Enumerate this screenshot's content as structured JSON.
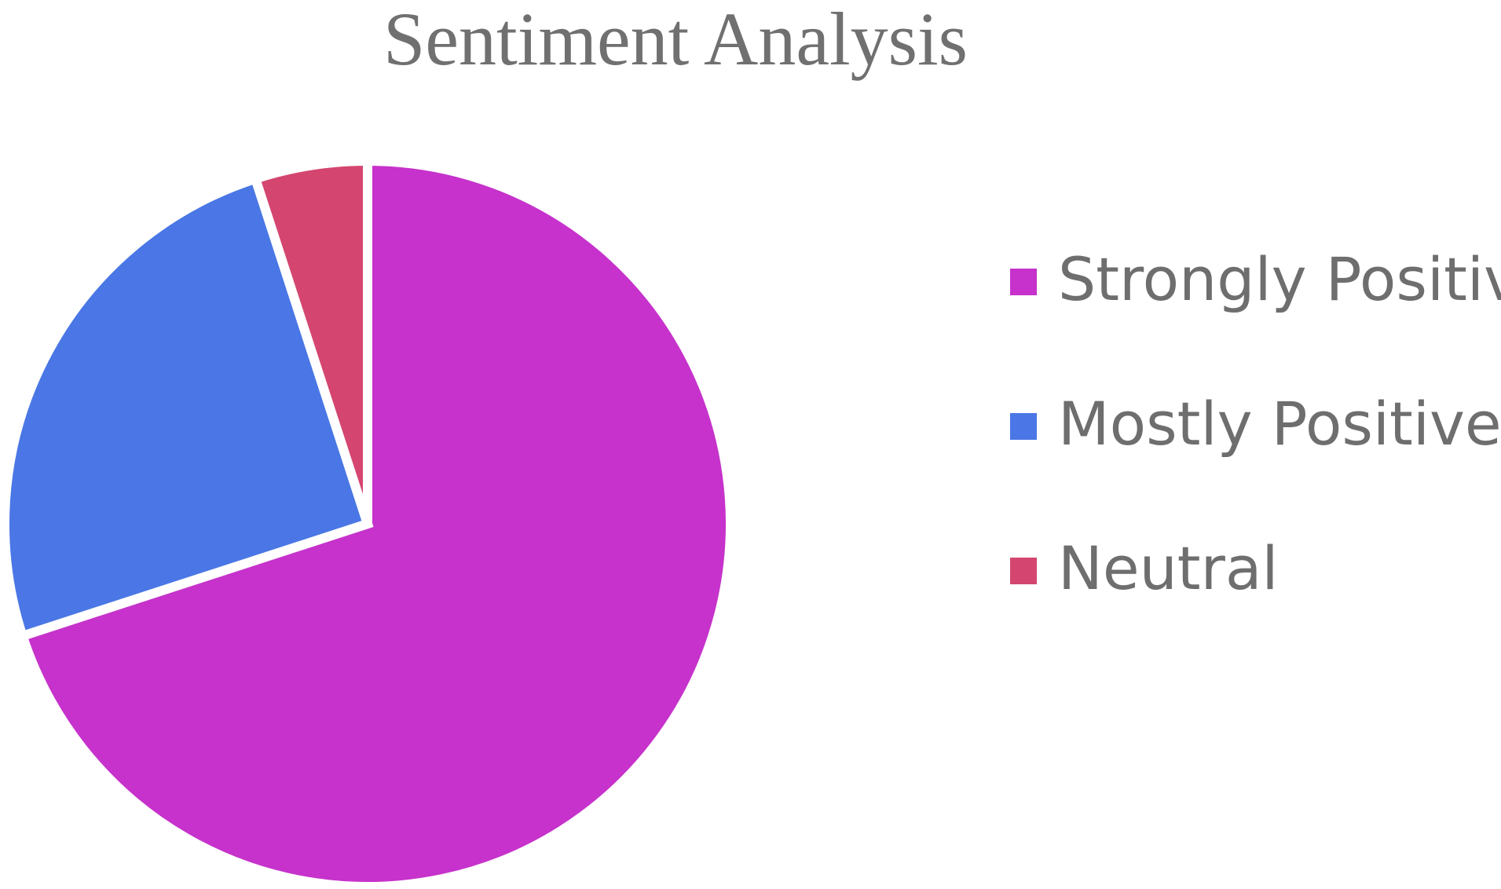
{
  "chart_data": {
    "type": "pie",
    "title": "Sentiment Analysis",
    "slices": [
      {
        "label": "Strongly Positive",
        "value": 70,
        "color": "#C632CB"
      },
      {
        "label": "Mostly Positive",
        "value": 25,
        "color": "#4A77E5"
      },
      {
        "label": "Neutral",
        "value": 5,
        "color": "#D4466F"
      }
    ],
    "legend_position": "right",
    "slice_border_color": "#ffffff"
  }
}
